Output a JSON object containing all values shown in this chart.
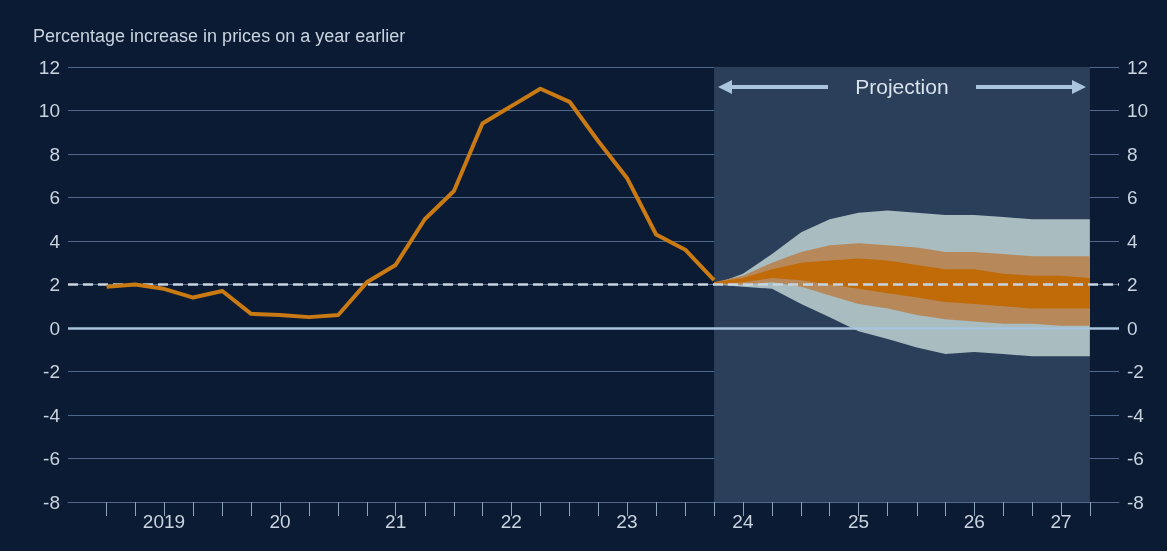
{
  "chart_data": {
    "type": "line",
    "ylabel": "Percentage increase in prices on a year earlier",
    "xlim": [
      "2018-09",
      "2027-10"
    ],
    "xticks": [
      {
        "value": "2019-01",
        "label": null
      },
      {
        "value": "2019-04",
        "label": null
      },
      {
        "value": "2019-07",
        "label": "2019"
      },
      {
        "value": "2019-10",
        "label": null
      },
      {
        "value": "2020-01",
        "label": null
      },
      {
        "value": "2020-04",
        "label": null
      },
      {
        "value": "2020-07",
        "label": "20"
      },
      {
        "value": "2020-10",
        "label": null
      },
      {
        "value": "2021-01",
        "label": null
      },
      {
        "value": "2021-04",
        "label": null
      },
      {
        "value": "2021-07",
        "label": "21"
      },
      {
        "value": "2021-10",
        "label": null
      },
      {
        "value": "2022-01",
        "label": null
      },
      {
        "value": "2022-04",
        "label": null
      },
      {
        "value": "2022-07",
        "label": "22"
      },
      {
        "value": "2022-10",
        "label": null
      },
      {
        "value": "2023-01",
        "label": null
      },
      {
        "value": "2023-04",
        "label": null
      },
      {
        "value": "2023-07",
        "label": "23"
      },
      {
        "value": "2023-10",
        "label": null
      },
      {
        "value": "2024-01",
        "label": null
      },
      {
        "value": "2024-04",
        "label": null
      },
      {
        "value": "2024-07",
        "label": "24"
      },
      {
        "value": "2024-10",
        "label": null
      },
      {
        "value": "2025-01",
        "label": null
      },
      {
        "value": "2025-04",
        "label": null
      },
      {
        "value": "2025-07",
        "label": "25"
      },
      {
        "value": "2025-10",
        "label": null
      },
      {
        "value": "2026-01",
        "label": null
      },
      {
        "value": "2026-04",
        "label": null
      },
      {
        "value": "2026-07",
        "label": "26"
      },
      {
        "value": "2026-10",
        "label": null
      },
      {
        "value": "2027-01",
        "label": null
      },
      {
        "value": "2027-04",
        "label": "27"
      },
      {
        "value": "2027-07",
        "label": null
      }
    ],
    "ylim": [
      -8,
      12
    ],
    "yticks": [
      -8,
      -6,
      -4,
      -2,
      0,
      2,
      4,
      6,
      8,
      10,
      12
    ],
    "y2lim": [
      -8,
      12
    ],
    "y2ticks": [
      -8,
      -6,
      -4,
      -2,
      0,
      2,
      4,
      6,
      8,
      10,
      12
    ],
    "grid": "y",
    "marker": "none",
    "series": [
      {
        "color": "#a9bcc0",
        "x": [
          "2024-04",
          "2024-07",
          "2024-10",
          "2025-01",
          "2025-04",
          "2025-07",
          "2025-10",
          "2026-01",
          "2026-04",
          "2026-07",
          "2026-10",
          "2027-01",
          "2027-04",
          "2027-07"
        ],
        "values": [
          null,
          null,
          null,
          null,
          null,
          null,
          null,
          null,
          null,
          null,
          null,
          null,
          null,
          null
        ],
        "upper": [
          2.0,
          2.5,
          3.4,
          4.4,
          5.0,
          5.3,
          5.4,
          5.3,
          5.2,
          5.2,
          5.1,
          5.0,
          5.0,
          5.0
        ],
        "lower": [
          2.0,
          1.9,
          1.8,
          1.1,
          0.5,
          -0.15,
          -0.5,
          -0.9,
          -1.2,
          -1.1,
          -1.2,
          -1.3,
          -1.3,
          -1.3
        ]
      },
      {
        "color": "#b7895a",
        "x": [
          "2024-04",
          "2024-07",
          "2024-10",
          "2025-01",
          "2025-04",
          "2025-07",
          "2025-10",
          "2026-01",
          "2026-04",
          "2026-07",
          "2026-10",
          "2027-01",
          "2027-04",
          "2027-07"
        ],
        "values": [
          null,
          null,
          null,
          null,
          null,
          null,
          null,
          null,
          null,
          null,
          null,
          null,
          null,
          null
        ],
        "upper": [
          2.1,
          2.4,
          3.0,
          3.5,
          3.8,
          3.9,
          3.8,
          3.7,
          3.5,
          3.5,
          3.4,
          3.3,
          3.3,
          3.3
        ],
        "lower": [
          2.0,
          2.0,
          2.1,
          1.9,
          1.5,
          1.1,
          0.9,
          0.6,
          0.4,
          0.3,
          0.2,
          0.2,
          0.1,
          0.1
        ]
      },
      {
        "color": "#c06a08",
        "x": [
          "2024-04",
          "2024-07",
          "2024-10",
          "2025-01",
          "2025-04",
          "2025-07",
          "2025-10",
          "2026-01",
          "2026-04",
          "2026-07",
          "2026-10",
          "2027-01",
          "2027-04",
          "2027-07"
        ],
        "values": [
          null,
          null,
          null,
          null,
          null,
          null,
          null,
          null,
          null,
          null,
          null,
          null,
          null,
          null
        ],
        "upper": [
          2.1,
          2.3,
          2.7,
          3.0,
          3.1,
          3.2,
          3.1,
          2.9,
          2.7,
          2.7,
          2.5,
          2.4,
          2.4,
          2.3
        ],
        "lower": [
          2.0,
          2.1,
          2.3,
          2.2,
          2.0,
          1.8,
          1.6,
          1.4,
          1.2,
          1.1,
          1.0,
          0.9,
          0.9,
          0.9
        ]
      },
      {
        "color": "#c97a12",
        "x": [
          "2019-01",
          "2019-04",
          "2019-07",
          "2019-10",
          "2020-01",
          "2020-04",
          "2020-07",
          "2020-10",
          "2021-01",
          "2021-04",
          "2021-07",
          "2021-10",
          "2022-01",
          "2022-04",
          "2022-07",
          "2022-10",
          "2023-01",
          "2023-04",
          "2023-07",
          "2023-10",
          "2024-01",
          "2024-04"
        ],
        "values": [
          1.9,
          2.0,
          1.8,
          1.4,
          1.7,
          0.65,
          0.6,
          0.5,
          0.6,
          2.1,
          2.9,
          5.0,
          6.3,
          9.4,
          10.2,
          11.0,
          10.4,
          8.6,
          6.9,
          4.3,
          3.6,
          2.2
        ]
      }
    ],
    "ref_lines": [
      {
        "axis": "y",
        "value": 2,
        "color": "#c8d4e0",
        "line_style": "dashed"
      },
      {
        "axis": "y",
        "value": 0,
        "color": "#a9c4dc",
        "line_style": "solid"
      }
    ],
    "bands": [
      {
        "axis": "x",
        "from": "2024-04",
        "to": "2027-07",
        "label": "Projection",
        "color": "#2b3f5a"
      }
    ]
  }
}
